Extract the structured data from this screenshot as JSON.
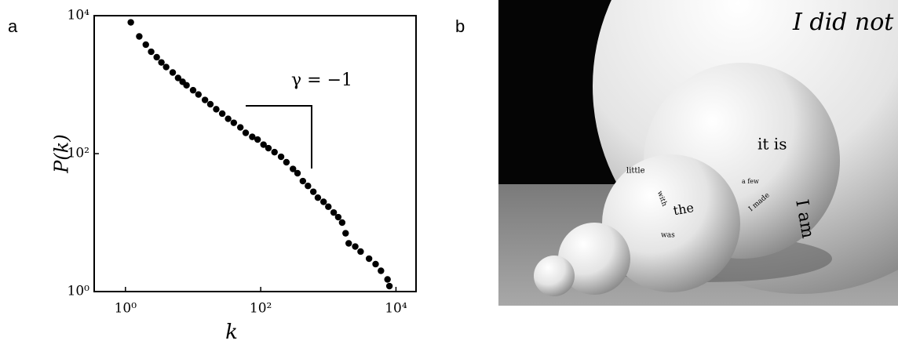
{
  "panel_labels": [
    "a",
    "b"
  ],
  "chart_data": {
    "type": "scatter",
    "xlabel": "k",
    "ylabel": "P(k)",
    "annotation": "γ = −1",
    "xscale": "log",
    "yscale": "log",
    "color": "#000000",
    "xlim": [
      0.345,
      19800
    ],
    "ylim": [
      1,
      10000
    ],
    "xticks": [
      {
        "value": 1,
        "label": "10⁰"
      },
      {
        "value": 100,
        "label": "10²"
      },
      {
        "value": 10000,
        "label": "10⁴"
      }
    ],
    "yticks": [
      {
        "value": 1,
        "label": "10⁰"
      },
      {
        "value": 100,
        "label": "10²"
      },
      {
        "value": 10000,
        "label": "10⁴"
      }
    ],
    "x": [
      1.2,
      1.6,
      2.0,
      2.4,
      2.9,
      3.4,
      4,
      5,
      6,
      7,
      8,
      10,
      12,
      15,
      18,
      22,
      27,
      33,
      40,
      50,
      60,
      75,
      90,
      110,
      130,
      160,
      200,
      240,
      300,
      350,
      420,
      500,
      600,
      700,
      850,
      1000,
      1200,
      1400,
      1600,
      1800,
      2000,
      2500,
      3000,
      4000,
      5000,
      6000,
      7500,
      8000
    ],
    "values": [
      8000,
      5000,
      3800,
      3000,
      2500,
      2100,
      1800,
      1500,
      1250,
      1100,
      980,
      830,
      720,
      600,
      520,
      440,
      380,
      320,
      280,
      240,
      200,
      175,
      160,
      135,
      120,
      105,
      90,
      75,
      60,
      52,
      40,
      34,
      28,
      23,
      20,
      17,
      14,
      12,
      10,
      7,
      5,
      4.5,
      3.8,
      3,
      2.5,
      2,
      1.5,
      1.2
    ]
  },
  "image": {
    "texts": [
      "I did not",
      "it is",
      "I am",
      "the",
      "little",
      "was",
      "with",
      "a few",
      "I made"
    ]
  }
}
